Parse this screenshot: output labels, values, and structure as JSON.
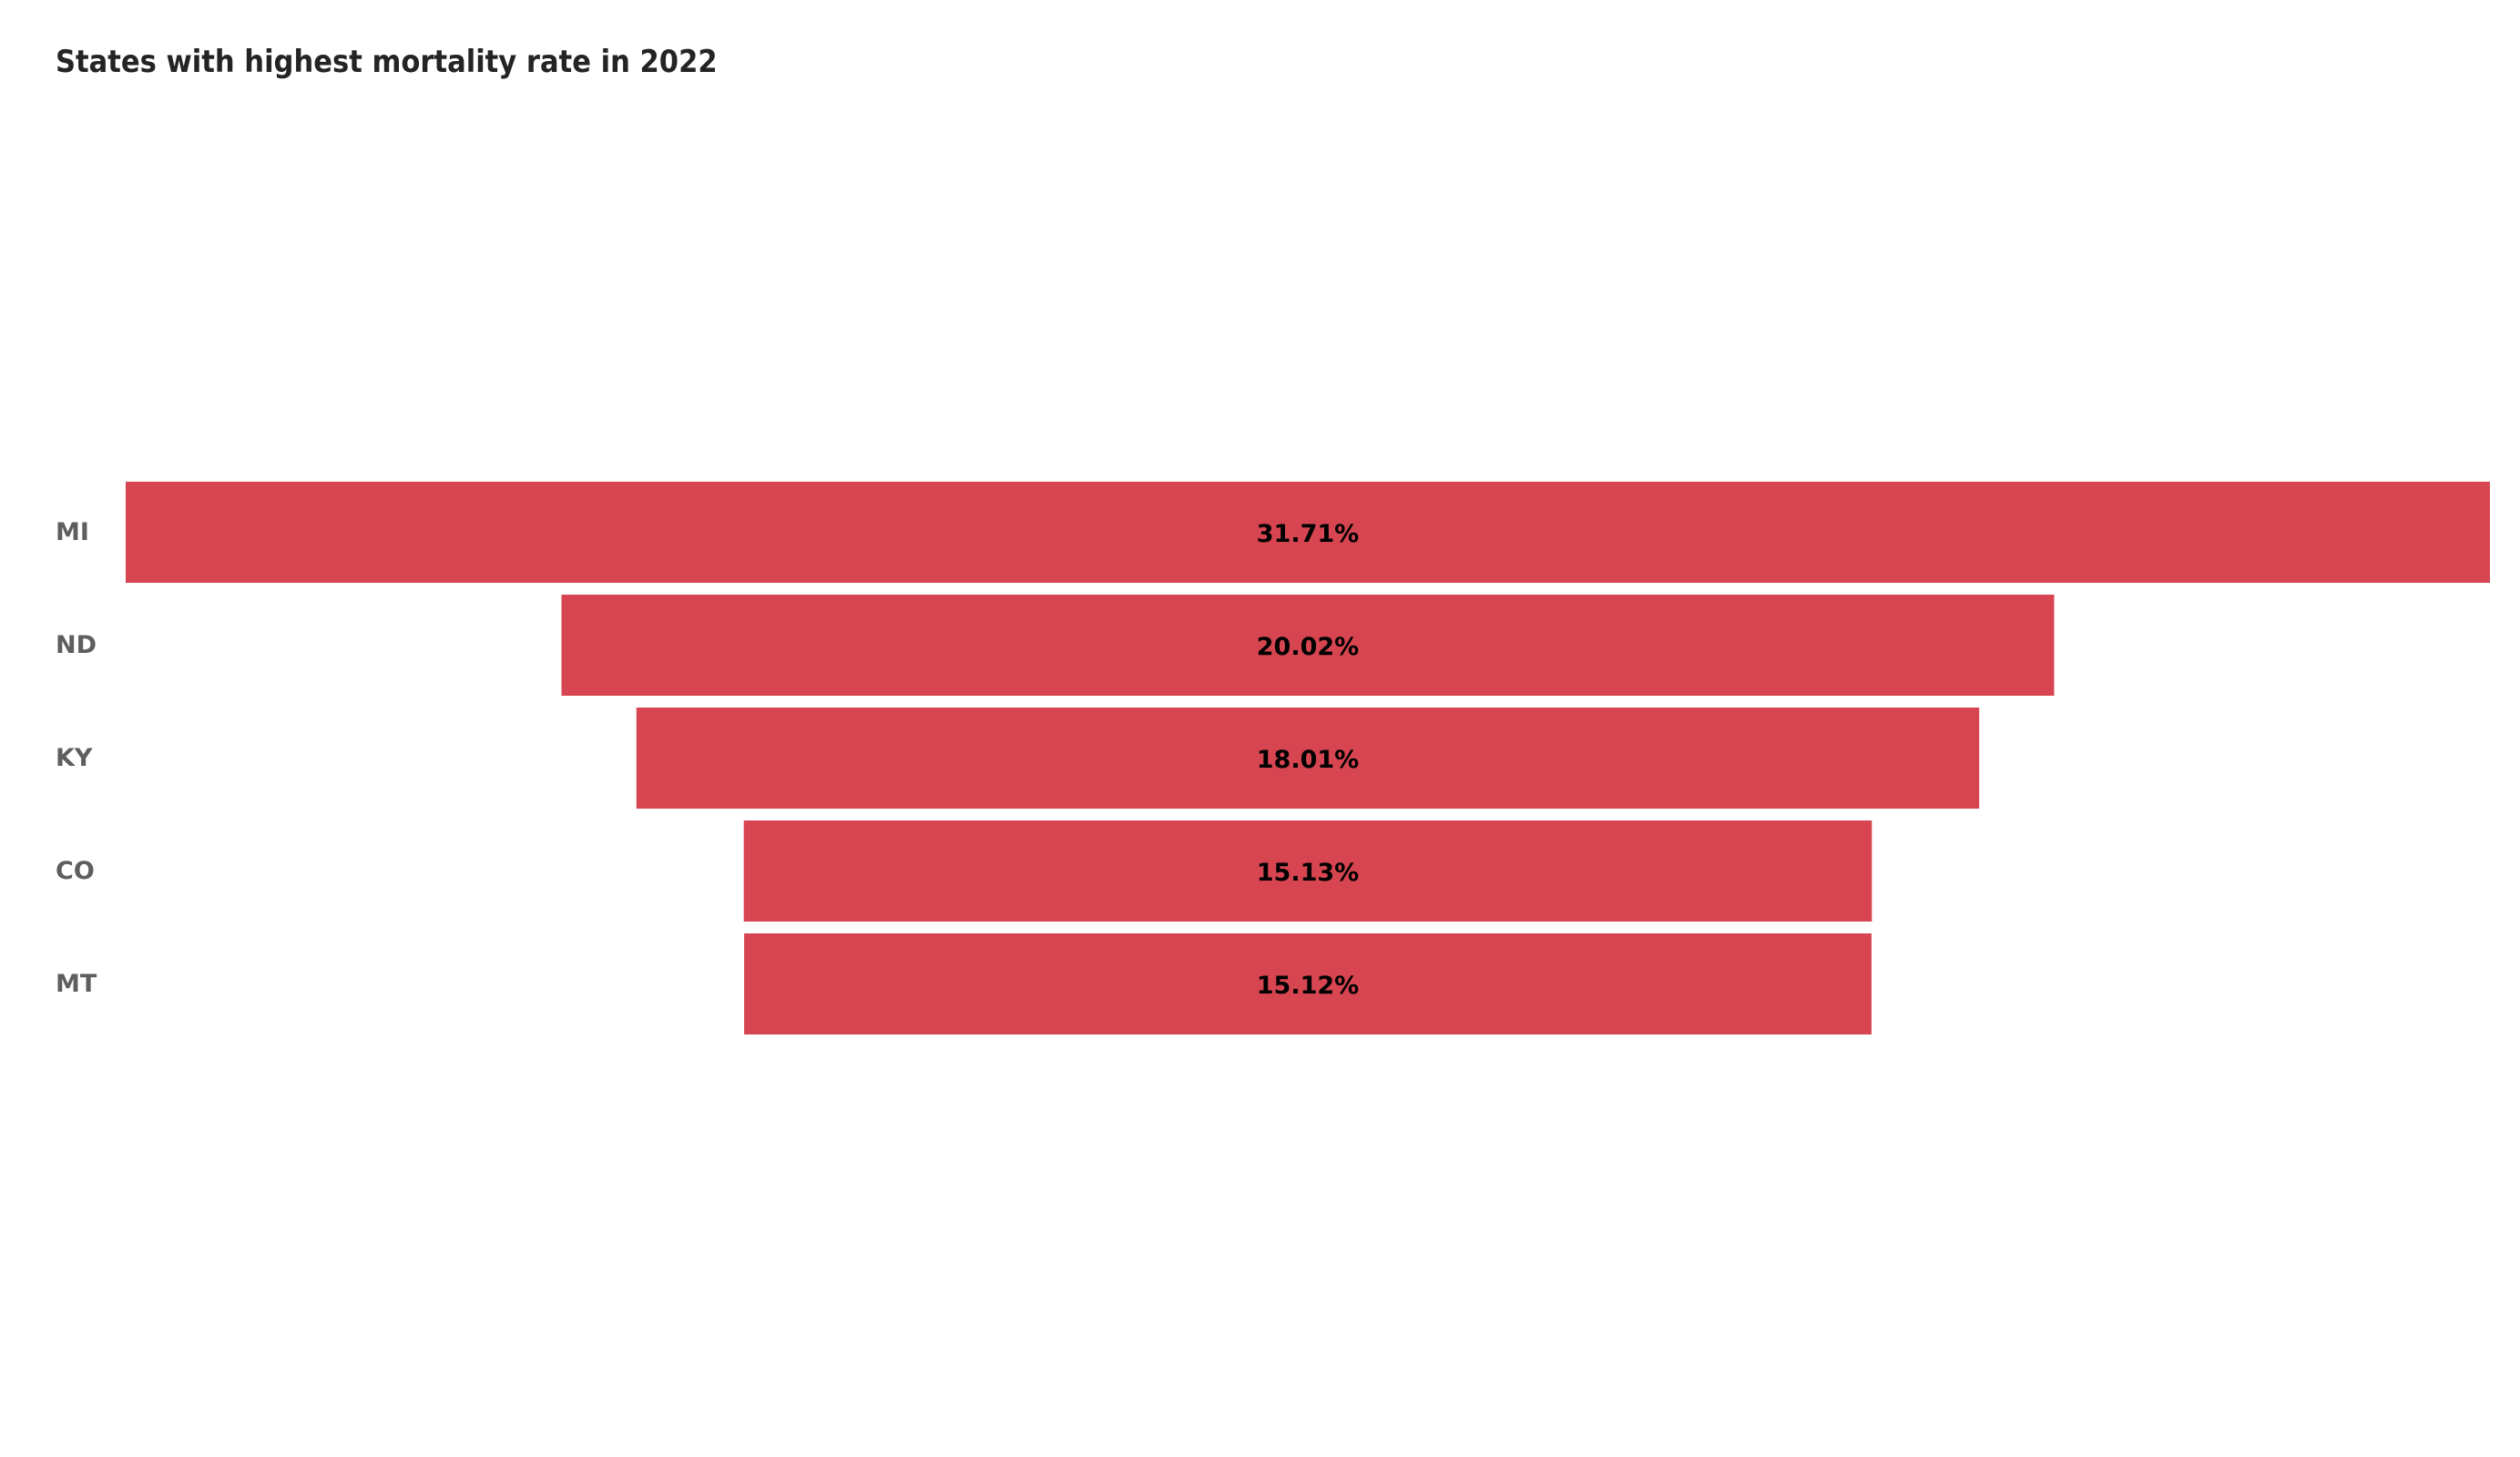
{
  "chart_data": {
    "type": "funnel",
    "title": "States with highest mortality rate in 2022",
    "categories": [
      "MI",
      "ND",
      "KY",
      "CO",
      "MT"
    ],
    "values": [
      31.71,
      20.02,
      18.01,
      15.13,
      15.12
    ],
    "value_labels": [
      "31.71%",
      "20.02%",
      "18.01%",
      "15.13%",
      "15.12%"
    ],
    "unit": "%",
    "bar_color": "#D64550",
    "category_label_color": "#605E5C",
    "value_label_color": "#000000"
  }
}
